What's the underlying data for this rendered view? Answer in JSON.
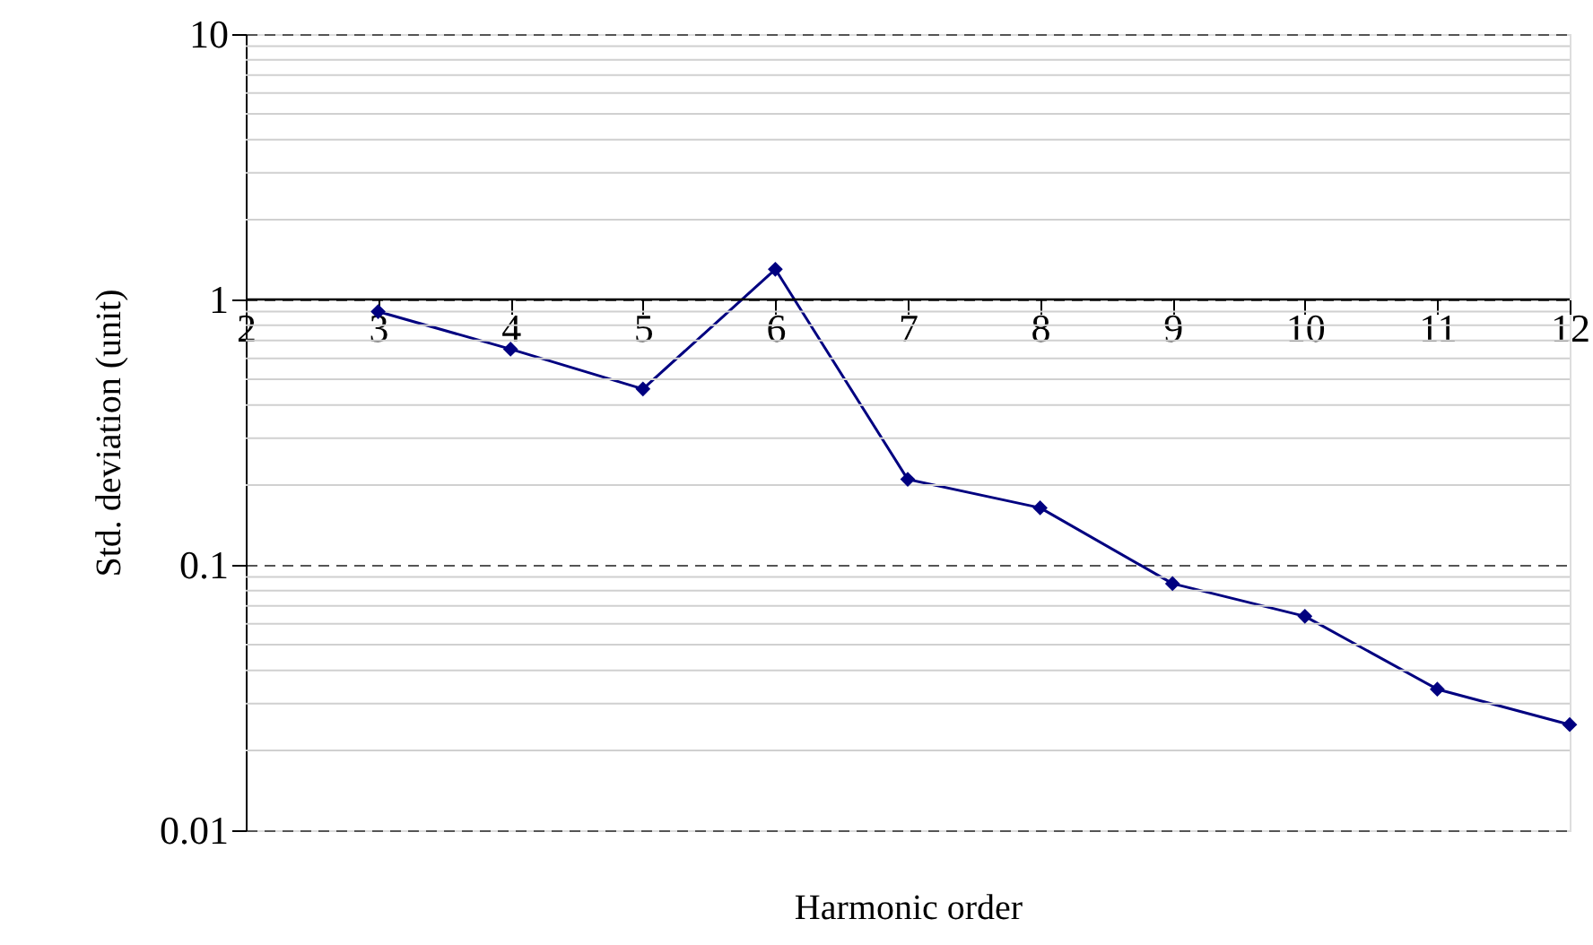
{
  "chart_data": {
    "type": "line",
    "xlabel": "Harmonic order",
    "ylabel": "Std. deviation (unit)",
    "x": [
      3,
      4,
      5,
      6,
      7,
      8,
      9,
      10,
      11,
      12
    ],
    "series": [
      {
        "color": "#000080",
        "values": [
          0.9,
          0.65,
          0.46,
          1.3,
          0.21,
          0.164,
          0.085,
          0.064,
          0.034,
          0.025
        ]
      }
    ],
    "xlim": [
      2,
      12
    ],
    "xticks": [
      2,
      3,
      4,
      5,
      6,
      7,
      8,
      9,
      10,
      11,
      12
    ],
    "ylim": [
      0.01,
      10
    ],
    "yticks": [
      0.01,
      0.1,
      1,
      10
    ],
    "log": true,
    "grid": "y",
    "marker": "diamond",
    "line_style": "solid"
  }
}
